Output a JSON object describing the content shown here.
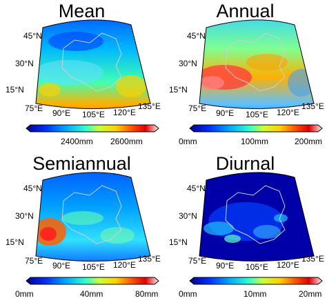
{
  "panels": [
    {
      "title": "Mean",
      "lat_ticks": [
        "45°N",
        "30°N",
        "15°N"
      ],
      "lon_ticks": [
        "75°E",
        "90°E",
        "105°E",
        "120°E",
        "135°E"
      ],
      "colorbar_labels": [
        "2400mm",
        "2600mm"
      ],
      "colorbar_positions": [
        0.33,
        0.73
      ]
    },
    {
      "title": "Annual",
      "lat_ticks": [
        "45°N",
        "30°N",
        "15°N"
      ],
      "lon_ticks": [
        "75°E",
        "90°E",
        "105°E",
        "120°E",
        "135°E"
      ],
      "colorbar_labels": [
        "0mm",
        "100mm",
        "200mm"
      ],
      "colorbar_positions": [
        0.0,
        0.5,
        1.0
      ]
    },
    {
      "title": "Semiannual",
      "lat_ticks": [
        "45°N",
        "30°N",
        "15°N"
      ],
      "lon_ticks": [
        "75°E",
        "90°E",
        "105°E",
        "120°E",
        "135°E"
      ],
      "colorbar_labels": [
        "0mm",
        "40mm",
        "80mm"
      ],
      "colorbar_positions": [
        0.0,
        0.5,
        1.0
      ]
    },
    {
      "title": "Diurnal",
      "lat_ticks": [
        "45°N",
        "30°N",
        "15°N"
      ],
      "lon_ticks": [
        "75°E",
        "90°E",
        "105°E",
        "120°E",
        "135°E"
      ],
      "colorbar_labels": [
        "0mm",
        "10mm",
        "20mm"
      ],
      "colorbar_positions": [
        0.0,
        0.5,
        1.0
      ]
    }
  ],
  "colormap": [
    "#00008f",
    "#0030ff",
    "#00a8ff",
    "#30ffd0",
    "#c8ff38",
    "#ffd000",
    "#ff5000",
    "#e00000",
    "#ffffff"
  ]
}
